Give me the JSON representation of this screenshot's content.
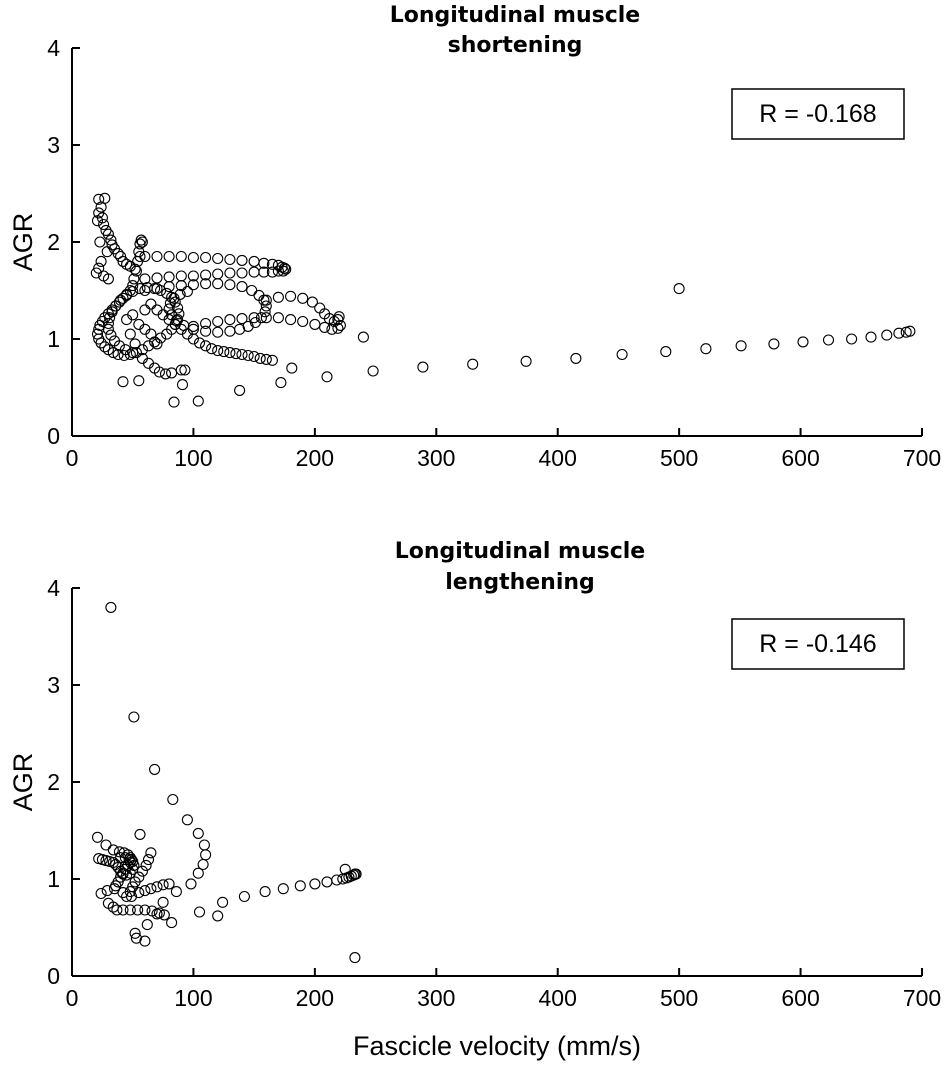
{
  "figure": {
    "xlabel": "Fascicle velocity (mm/s)"
  },
  "chart_data": [
    {
      "type": "scatter",
      "title_line1": "Longitudinal muscle",
      "title_line2": "shortening",
      "title": "Longitudinal muscle shortening",
      "xlabel": "",
      "ylabel": "AGR",
      "xlim": [
        0,
        700
      ],
      "ylim": [
        0,
        4
      ],
      "xticks": [
        0,
        100,
        200,
        300,
        400,
        500,
        600,
        700
      ],
      "yticks": [
        0,
        1,
        2,
        3,
        4
      ],
      "grid": false,
      "marker": "open-circle",
      "annotation": "R = -0.168",
      "points": [
        [
          22,
          2.44
        ],
        [
          27,
          2.45
        ],
        [
          24,
          2.36
        ],
        [
          22,
          2.3
        ],
        [
          25,
          2.25
        ],
        [
          21,
          2.22
        ],
        [
          26,
          2.18
        ],
        [
          28,
          2.12
        ],
        [
          30,
          2.08
        ],
        [
          32,
          2.02
        ],
        [
          23,
          2.0
        ],
        [
          33,
          1.97
        ],
        [
          35,
          1.93
        ],
        [
          29,
          1.9
        ],
        [
          38,
          1.88
        ],
        [
          40,
          1.85
        ],
        [
          24,
          1.8
        ],
        [
          42,
          1.8
        ],
        [
          45,
          1.77
        ],
        [
          22,
          1.73
        ],
        [
          48,
          1.75
        ],
        [
          20,
          1.68
        ],
        [
          26,
          1.65
        ],
        [
          30,
          1.62
        ],
        [
          52,
          1.72
        ],
        [
          55,
          1.9
        ],
        [
          56,
          1.98
        ],
        [
          57,
          2.02
        ],
        [
          58,
          2.0
        ],
        [
          56,
          1.85
        ],
        [
          54,
          1.8
        ],
        [
          53,
          1.7
        ],
        [
          51,
          1.62
        ],
        [
          50,
          1.55
        ],
        [
          48,
          1.5
        ],
        [
          45,
          1.46
        ],
        [
          42,
          1.42
        ],
        [
          39,
          1.38
        ],
        [
          36,
          1.34
        ],
        [
          33,
          1.3
        ],
        [
          30,
          1.26
        ],
        [
          27,
          1.22
        ],
        [
          25,
          1.18
        ],
        [
          23,
          1.14
        ],
        [
          22,
          1.1
        ],
        [
          21,
          1.05
        ],
        [
          22,
          1.0
        ],
        [
          24,
          0.96
        ],
        [
          27,
          0.92
        ],
        [
          30,
          0.89
        ],
        [
          34,
          0.86
        ],
        [
          38,
          0.84
        ],
        [
          43,
          0.83
        ],
        [
          48,
          0.84
        ],
        [
          53,
          0.86
        ],
        [
          58,
          0.89
        ],
        [
          63,
          0.93
        ],
        [
          68,
          0.97
        ],
        [
          73,
          1.01
        ],
        [
          78,
          1.05
        ],
        [
          82,
          1.1
        ],
        [
          85,
          1.15
        ],
        [
          87,
          1.2
        ],
        [
          88,
          1.26
        ],
        [
          87,
          1.32
        ],
        [
          85,
          1.38
        ],
        [
          82,
          1.43
        ],
        [
          78,
          1.47
        ],
        [
          73,
          1.5
        ],
        [
          68,
          1.52
        ],
        [
          62,
          1.53
        ],
        [
          56,
          1.52
        ],
        [
          50,
          1.49
        ],
        [
          45,
          1.45
        ],
        [
          40,
          1.4
        ],
        [
          36,
          1.34
        ],
        [
          33,
          1.28
        ],
        [
          31,
          1.22
        ],
        [
          30,
          1.16
        ],
        [
          30,
          1.1
        ],
        [
          32,
          1.04
        ],
        [
          35,
          0.98
        ],
        [
          39,
          0.93
        ],
        [
          44,
          0.89
        ],
        [
          50,
          0.86
        ],
        [
          60,
          1.85
        ],
        [
          70,
          1.85
        ],
        [
          80,
          1.85
        ],
        [
          90,
          1.85
        ],
        [
          100,
          1.84
        ],
        [
          110,
          1.84
        ],
        [
          120,
          1.83
        ],
        [
          130,
          1.82
        ],
        [
          140,
          1.81
        ],
        [
          150,
          1.8
        ],
        [
          158,
          1.78
        ],
        [
          165,
          1.77
        ],
        [
          170,
          1.76
        ],
        [
          173,
          1.74
        ],
        [
          175,
          1.73
        ],
        [
          176,
          1.72
        ],
        [
          174,
          1.7
        ],
        [
          170,
          1.7
        ],
        [
          165,
          1.69
        ],
        [
          158,
          1.69
        ],
        [
          150,
          1.69
        ],
        [
          140,
          1.68
        ],
        [
          130,
          1.68
        ],
        [
          120,
          1.67
        ],
        [
          110,
          1.66
        ],
        [
          100,
          1.65
        ],
        [
          90,
          1.65
        ],
        [
          80,
          1.64
        ],
        [
          70,
          1.63
        ],
        [
          60,
          1.62
        ],
        [
          60,
          1.5
        ],
        [
          70,
          1.52
        ],
        [
          80,
          1.54
        ],
        [
          90,
          1.55
        ],
        [
          100,
          1.56
        ],
        [
          110,
          1.57
        ],
        [
          120,
          1.57
        ],
        [
          130,
          1.56
        ],
        [
          140,
          1.54
        ],
        [
          148,
          1.5
        ],
        [
          154,
          1.45
        ],
        [
          158,
          1.4
        ],
        [
          160,
          1.34
        ],
        [
          159,
          1.28
        ],
        [
          156,
          1.22
        ],
        [
          151,
          1.17
        ],
        [
          145,
          1.13
        ],
        [
          138,
          1.1
        ],
        [
          130,
          1.08
        ],
        [
          120,
          1.07
        ],
        [
          110,
          1.08
        ],
        [
          100,
          1.1
        ],
        [
          92,
          1.14
        ],
        [
          86,
          1.19
        ],
        [
          82,
          1.25
        ],
        [
          80,
          1.31
        ],
        [
          81,
          1.37
        ],
        [
          84,
          1.42
        ],
        [
          89,
          1.46
        ],
        [
          95,
          1.49
        ],
        [
          160,
          1.4
        ],
        [
          170,
          1.43
        ],
        [
          180,
          1.44
        ],
        [
          190,
          1.42
        ],
        [
          198,
          1.38
        ],
        [
          204,
          1.32
        ],
        [
          208,
          1.26
        ],
        [
          212,
          1.21
        ],
        [
          216,
          1.18
        ],
        [
          219,
          1.2
        ],
        [
          220,
          1.23
        ],
        [
          221,
          1.14
        ],
        [
          219,
          1.11
        ],
        [
          214,
          1.1
        ],
        [
          208,
          1.12
        ],
        [
          200,
          1.15
        ],
        [
          190,
          1.18
        ],
        [
          180,
          1.2
        ],
        [
          170,
          1.22
        ],
        [
          160,
          1.22
        ],
        [
          150,
          1.22
        ],
        [
          140,
          1.21
        ],
        [
          130,
          1.2
        ],
        [
          120,
          1.18
        ],
        [
          110,
          1.16
        ],
        [
          100,
          1.13
        ],
        [
          60,
          1.3
        ],
        [
          65,
          1.36
        ],
        [
          70,
          1.3
        ],
        [
          75,
          1.25
        ],
        [
          80,
          1.2
        ],
        [
          85,
          1.15
        ],
        [
          90,
          1.1
        ],
        [
          95,
          1.05
        ],
        [
          100,
          1.0
        ],
        [
          105,
          0.96
        ],
        [
          110,
          0.93
        ],
        [
          115,
          0.9
        ],
        [
          120,
          0.88
        ],
        [
          125,
          0.87
        ],
        [
          130,
          0.86
        ],
        [
          135,
          0.85
        ],
        [
          140,
          0.84
        ],
        [
          145,
          0.83
        ],
        [
          150,
          0.82
        ],
        [
          155,
          0.8
        ],
        [
          160,
          0.79
        ],
        [
          165,
          0.78
        ],
        [
          45,
          1.2
        ],
        [
          50,
          1.25
        ],
        [
          55,
          1.15
        ],
        [
          60,
          1.1
        ],
        [
          65,
          1.05
        ],
        [
          70,
          0.95
        ],
        [
          48,
          1.05
        ],
        [
          52,
          0.95
        ],
        [
          58,
          0.8
        ],
        [
          63,
          0.75
        ],
        [
          68,
          0.7
        ],
        [
          72,
          0.66
        ],
        [
          77,
          0.64
        ],
        [
          82,
          0.65
        ],
        [
          90,
          0.68
        ],
        [
          42,
          0.56
        ],
        [
          55,
          0.57
        ],
        [
          84,
          0.35
        ],
        [
          91,
          0.53
        ],
        [
          93,
          0.68
        ],
        [
          104,
          0.36
        ],
        [
          138,
          0.47
        ],
        [
          172,
          0.55
        ],
        [
          181,
          0.7
        ],
        [
          210,
          0.61
        ],
        [
          240,
          1.02
        ],
        [
          248,
          0.67
        ],
        [
          289,
          0.71
        ],
        [
          330,
          0.74
        ],
        [
          374,
          0.77
        ],
        [
          415,
          0.8
        ],
        [
          453,
          0.84
        ],
        [
          489,
          0.87
        ],
        [
          500,
          1.52
        ],
        [
          522,
          0.9
        ],
        [
          551,
          0.93
        ],
        [
          578,
          0.95
        ],
        [
          602,
          0.97
        ],
        [
          623,
          0.99
        ],
        [
          642,
          1.0
        ],
        [
          658,
          1.02
        ],
        [
          671,
          1.04
        ],
        [
          681,
          1.06
        ],
        [
          687,
          1.07
        ],
        [
          690,
          1.08
        ]
      ]
    },
    {
      "type": "scatter",
      "title_line1": "Longitudinal muscle",
      "title_line2": "lengthening",
      "title": "Longitudinal muscle lengthening",
      "xlabel": "Fascicle velocity (mm/s)",
      "ylabel": "AGR",
      "xlim": [
        0,
        700
      ],
      "ylim": [
        0,
        4
      ],
      "xticks": [
        0,
        100,
        200,
        300,
        400,
        500,
        600,
        700
      ],
      "yticks": [
        0,
        1,
        2,
        3,
        4
      ],
      "grid": false,
      "marker": "open-circle",
      "annotation": "R = -0.146",
      "points": [
        [
          32,
          3.8
        ],
        [
          51,
          2.67
        ],
        [
          68,
          2.13
        ],
        [
          83,
          1.82
        ],
        [
          95,
          1.61
        ],
        [
          104,
          1.47
        ],
        [
          109,
          1.35
        ],
        [
          110,
          1.25
        ],
        [
          108,
          1.15
        ],
        [
          104,
          1.06
        ],
        [
          98,
          0.95
        ],
        [
          21,
          1.43
        ],
        [
          56,
          1.46
        ],
        [
          28,
          1.35
        ],
        [
          34,
          1.3
        ],
        [
          39,
          1.28
        ],
        [
          43,
          1.27
        ],
        [
          46,
          1.25
        ],
        [
          48,
          1.22
        ],
        [
          49,
          1.2
        ],
        [
          48,
          1.17
        ],
        [
          46,
          1.14
        ],
        [
          44,
          1.1
        ],
        [
          42,
          1.06
        ],
        [
          40,
          1.02
        ],
        [
          38,
          0.97
        ],
        [
          36,
          0.93
        ],
        [
          22,
          1.21
        ],
        [
          25,
          1.2
        ],
        [
          28,
          1.19
        ],
        [
          31,
          1.18
        ],
        [
          34,
          1.17
        ],
        [
          36,
          1.15
        ],
        [
          38,
          1.12
        ],
        [
          40,
          1.08
        ],
        [
          42,
          1.05
        ],
        [
          45,
          1.04
        ],
        [
          48,
          1.06
        ],
        [
          50,
          1.1
        ],
        [
          51,
          1.14
        ],
        [
          50,
          1.18
        ],
        [
          47,
          1.2
        ],
        [
          44,
          1.22
        ],
        [
          40,
          1.22
        ],
        [
          65,
          1.27
        ],
        [
          63,
          1.2
        ],
        [
          61,
          1.14
        ],
        [
          58,
          1.08
        ],
        [
          55,
          1.02
        ],
        [
          52,
          0.97
        ],
        [
          50,
          0.92
        ],
        [
          48,
          0.87
        ],
        [
          45,
          0.82
        ],
        [
          24,
          0.85
        ],
        [
          29,
          0.88
        ],
        [
          35,
          0.9
        ],
        [
          42,
          0.86
        ],
        [
          49,
          0.82
        ],
        [
          55,
          0.86
        ],
        [
          60,
          0.88
        ],
        [
          65,
          0.9
        ],
        [
          70,
          0.92
        ],
        [
          75,
          0.94
        ],
        [
          80,
          0.95
        ],
        [
          30,
          0.75
        ],
        [
          34,
          0.71
        ],
        [
          37,
          0.68
        ],
        [
          42,
          0.68
        ],
        [
          48,
          0.68
        ],
        [
          54,
          0.68
        ],
        [
          60,
          0.68
        ],
        [
          66,
          0.67
        ],
        [
          72,
          0.65
        ],
        [
          76,
          0.63
        ],
        [
          52,
          0.44
        ],
        [
          53,
          0.39
        ],
        [
          60,
          0.36
        ],
        [
          62,
          0.53
        ],
        [
          70,
          0.64
        ],
        [
          75,
          0.76
        ],
        [
          82,
          0.55
        ],
        [
          86,
          0.87
        ],
        [
          105,
          0.66
        ],
        [
          120,
          0.62
        ],
        [
          124,
          0.76
        ],
        [
          142,
          0.82
        ],
        [
          159,
          0.87
        ],
        [
          174,
          0.9
        ],
        [
          188,
          0.93
        ],
        [
          200,
          0.95
        ],
        [
          210,
          0.97
        ],
        [
          218,
          0.99
        ],
        [
          223,
          1.0
        ],
        [
          226,
          1.01
        ],
        [
          228,
          1.02
        ],
        [
          230,
          1.03
        ],
        [
          232,
          1.04
        ],
        [
          233,
          1.05
        ],
        [
          234,
          1.05
        ],
        [
          225,
          1.1
        ],
        [
          233,
          0.19
        ]
      ]
    }
  ]
}
